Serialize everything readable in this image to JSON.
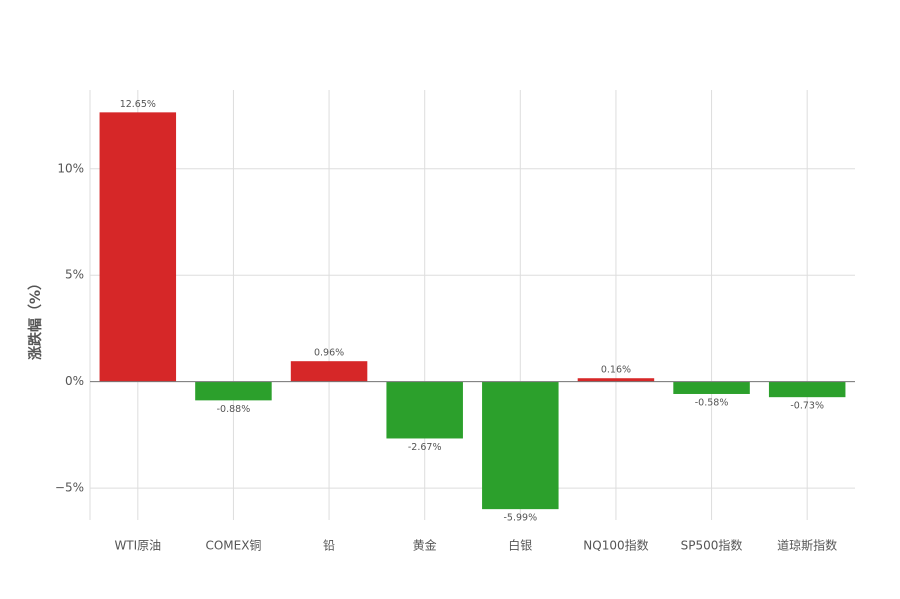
{
  "chart_data": {
    "type": "bar",
    "y_label": "涨跌幅（%）",
    "categories": [
      "WTI原油",
      "COMEX铜",
      "铅",
      "黄金",
      "白银",
      "NQ100指数",
      "SP500指数",
      "道琼斯指数"
    ],
    "values": [
      12.65,
      -0.88,
      0.96,
      -2.67,
      -5.99,
      0.16,
      -0.58,
      -0.73
    ],
    "value_labels": [
      "12.65%",
      "-0.88%",
      "0.96%",
      "-2.67%",
      "-5.99%",
      "0.16%",
      "-0.58%",
      "-0.73%"
    ],
    "colors": [
      "#d62728",
      "#2ca02c",
      "#d62728",
      "#2ca02c",
      "#2ca02c",
      "#d62728",
      "#2ca02c",
      "#2ca02c"
    ],
    "ylim": [
      -6.5,
      13.7
    ],
    "yticks": [
      {
        "value": -5,
        "label": "−5%"
      },
      {
        "value": 0,
        "label": "0%"
      },
      {
        "value": 5,
        "label": "5%"
      },
      {
        "value": 10,
        "label": "10%"
      }
    ],
    "grid": true
  }
}
